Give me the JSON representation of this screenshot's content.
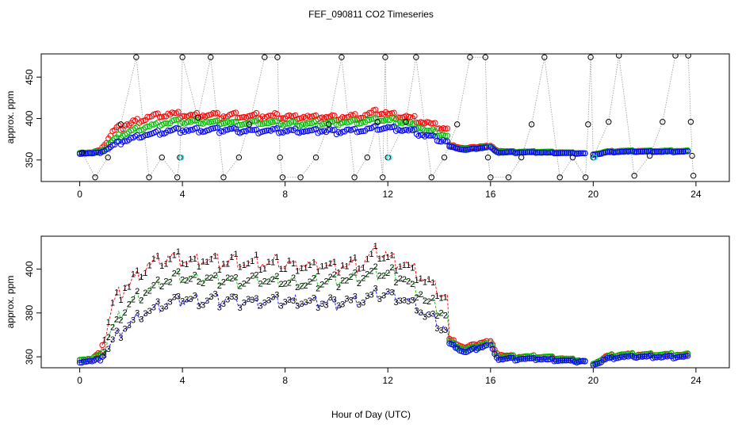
{
  "title": "FEF_090811  CO2 Timeseries",
  "xlabel": "Hour of Day (UTC)",
  "colors": {
    "series1": "#ff0000",
    "series2": "#00bb00",
    "series3": "#0000ff",
    "raw": "#000000",
    "flag": "#00e5ee",
    "connector": "#999999"
  },
  "chart_data": [
    {
      "type": "scatter",
      "ylabel": "approx. ppm",
      "xlim": [
        -1.5,
        25.3
      ],
      "ylim": [
        324,
        478
      ],
      "x_ticks": [
        "0",
        "4",
        "8",
        "12",
        "16",
        "20",
        "24"
      ],
      "x_tick_values": [
        0,
        4,
        8,
        12,
        16,
        20,
        24
      ],
      "y_ticks": [
        "350",
        "400",
        "450"
      ],
      "y_tick_values": [
        350,
        400,
        450
      ],
      "series": [
        {
          "values_key": "series1",
          "color": "#ff0000",
          "marker": "circle"
        },
        {
          "values_key": "series2",
          "color": "#00bb00",
          "marker": "circle"
        },
        {
          "values_key": "series3",
          "color": "#0000ff",
          "marker": "circle"
        }
      ],
      "raw_samples": [
        {
          "x": 0.1,
          "y": 359
        },
        {
          "x": 0.6,
          "y": 329
        },
        {
          "x": 1.1,
          "y": 353
        },
        {
          "x": 1.6,
          "y": 393
        },
        {
          "x": 2.2,
          "y": 474
        },
        {
          "x": 2.7,
          "y": 329
        },
        {
          "x": 3.2,
          "y": 353
        },
        {
          "x": 3.8,
          "y": 329
        },
        {
          "x": 3.9,
          "y": 353
        },
        {
          "x": 4.0,
          "y": 474
        },
        {
          "x": 4.6,
          "y": 401
        },
        {
          "x": 5.1,
          "y": 474
        },
        {
          "x": 5.6,
          "y": 329
        },
        {
          "x": 6.2,
          "y": 353
        },
        {
          "x": 6.6,
          "y": 393
        },
        {
          "x": 7.2,
          "y": 474
        },
        {
          "x": 7.7,
          "y": 474
        },
        {
          "x": 7.8,
          "y": 353
        },
        {
          "x": 7.9,
          "y": 329
        },
        {
          "x": 8.6,
          "y": 329
        },
        {
          "x": 9.2,
          "y": 353
        },
        {
          "x": 9.7,
          "y": 393
        },
        {
          "x": 10.2,
          "y": 474
        },
        {
          "x": 10.7,
          "y": 329
        },
        {
          "x": 11.2,
          "y": 353
        },
        {
          "x": 11.6,
          "y": 396
        },
        {
          "x": 11.8,
          "y": 329
        },
        {
          "x": 11.9,
          "y": 474
        },
        {
          "x": 12.0,
          "y": 353
        },
        {
          "x": 12.7,
          "y": 396
        },
        {
          "x": 13.1,
          "y": 474
        },
        {
          "x": 13.7,
          "y": 329
        },
        {
          "x": 14.2,
          "y": 353
        },
        {
          "x": 14.7,
          "y": 393
        },
        {
          "x": 15.2,
          "y": 474
        },
        {
          "x": 15.8,
          "y": 474
        },
        {
          "x": 15.9,
          "y": 353
        },
        {
          "x": 16.0,
          "y": 329
        },
        {
          "x": 16.7,
          "y": 329
        },
        {
          "x": 17.2,
          "y": 353
        },
        {
          "x": 17.6,
          "y": 393
        },
        {
          "x": 18.1,
          "y": 474
        },
        {
          "x": 18.7,
          "y": 329
        },
        {
          "x": 19.2,
          "y": 353
        },
        {
          "x": 19.7,
          "y": 329
        },
        {
          "x": 19.8,
          "y": 393
        },
        {
          "x": 19.9,
          "y": 474
        },
        {
          "x": 20.0,
          "y": 353
        },
        {
          "x": 20.6,
          "y": 396
        },
        {
          "x": 21.0,
          "y": 476
        },
        {
          "x": 21.6,
          "y": 331
        },
        {
          "x": 22.2,
          "y": 355
        },
        {
          "x": 22.7,
          "y": 396
        },
        {
          "x": 23.2,
          "y": 476
        },
        {
          "x": 23.7,
          "y": 476
        },
        {
          "x": 23.8,
          "y": 396
        },
        {
          "x": 23.85,
          "y": 355
        },
        {
          "x": 23.9,
          "y": 331
        }
      ],
      "flagged": [
        {
          "x": 3.95,
          "y": 353
        },
        {
          "x": 12.05,
          "y": 353
        },
        {
          "x": 20.05,
          "y": 353
        }
      ]
    },
    {
      "type": "scatter",
      "ylabel": "approx. ppm",
      "xlim": [
        -1.5,
        25.3
      ],
      "ylim": [
        355,
        415
      ],
      "x_ticks": [
        "0",
        "4",
        "8",
        "12",
        "16",
        "20",
        "24"
      ],
      "x_tick_values": [
        0,
        4,
        8,
        12,
        16,
        20,
        24
      ],
      "y_ticks": [
        "360",
        "380",
        "400"
      ],
      "y_tick_values": [
        360,
        380,
        400
      ],
      "series": [
        {
          "values_key": "series1",
          "color": "#ff0000",
          "marker": "1"
        },
        {
          "values_key": "series2",
          "color": "#00bb00",
          "marker": "2"
        },
        {
          "values_key": "series3",
          "color": "#0000ff",
          "marker": "3"
        }
      ]
    }
  ],
  "series_knots": {
    "series1": [
      [
        0,
        359
      ],
      [
        0.5,
        359
      ],
      [
        0.8,
        362
      ],
      [
        1.0,
        371
      ],
      [
        1.3,
        384
      ],
      [
        1.6,
        390
      ],
      [
        2.0,
        394
      ],
      [
        2.5,
        400
      ],
      [
        3.0,
        404
      ],
      [
        3.5,
        405
      ],
      [
        4.0,
        404
      ],
      [
        5.0,
        404
      ],
      [
        6.0,
        403
      ],
      [
        7.0,
        403
      ],
      [
        8.0,
        402
      ],
      [
        9.0,
        402
      ],
      [
        10.0,
        402
      ],
      [
        11.0,
        403
      ],
      [
        11.7,
        408
      ],
      [
        12.2,
        405
      ],
      [
        12.7,
        402
      ],
      [
        13.2,
        397
      ],
      [
        13.7,
        392
      ],
      [
        14.1,
        388
      ],
      [
        14.35,
        386
      ],
      [
        14.4,
        368
      ],
      [
        15.0,
        364
      ],
      [
        15.5,
        366
      ],
      [
        15.8,
        367
      ],
      [
        16.0,
        367
      ],
      [
        16.3,
        361
      ],
      [
        17.0,
        360
      ],
      [
        18.0,
        360
      ],
      [
        19.0,
        359
      ],
      [
        19.8,
        358
      ],
      [
        19.85,
        357
      ],
      [
        20.2,
        358
      ],
      [
        20.5,
        360
      ],
      [
        21.0,
        361
      ],
      [
        22.0,
        361
      ],
      [
        23.0,
        361
      ],
      [
        23.7,
        361
      ]
    ],
    "series2": [
      [
        0,
        359
      ],
      [
        0.5,
        359
      ],
      [
        0.8,
        361
      ],
      [
        1.0,
        365
      ],
      [
        1.3,
        373
      ],
      [
        1.6,
        380
      ],
      [
        2.0,
        385
      ],
      [
        2.5,
        390
      ],
      [
        3.0,
        393
      ],
      [
        3.5,
        395
      ],
      [
        4.0,
        396
      ],
      [
        5.0,
        396
      ],
      [
        6.0,
        395
      ],
      [
        7.0,
        395
      ],
      [
        8.0,
        394
      ],
      [
        9.0,
        394
      ],
      [
        10.0,
        395
      ],
      [
        11.0,
        396
      ],
      [
        11.7,
        399
      ],
      [
        12.2,
        398
      ],
      [
        12.7,
        395
      ],
      [
        13.2,
        390
      ],
      [
        13.7,
        384
      ],
      [
        14.1,
        381
      ],
      [
        14.35,
        379
      ],
      [
        14.4,
        367
      ],
      [
        15.0,
        363
      ],
      [
        15.5,
        365
      ],
      [
        15.8,
        366
      ],
      [
        16.0,
        366
      ],
      [
        16.3,
        360
      ],
      [
        17.0,
        360
      ],
      [
        18.0,
        360
      ],
      [
        19.0,
        359
      ],
      [
        19.8,
        358
      ],
      [
        19.85,
        357
      ],
      [
        20.2,
        358
      ],
      [
        20.5,
        360
      ],
      [
        21.0,
        361
      ],
      [
        22.0,
        361
      ],
      [
        23.0,
        361
      ],
      [
        23.7,
        361
      ]
    ],
    "series3": [
      [
        0,
        358
      ],
      [
        0.5,
        358
      ],
      [
        0.8,
        359
      ],
      [
        1.0,
        362
      ],
      [
        1.3,
        367
      ],
      [
        1.6,
        372
      ],
      [
        2.0,
        376
      ],
      [
        2.5,
        380
      ],
      [
        3.0,
        383
      ],
      [
        3.5,
        385
      ],
      [
        4.0,
        386
      ],
      [
        5.0,
        386
      ],
      [
        6.0,
        386
      ],
      [
        7.0,
        385
      ],
      [
        8.0,
        385
      ],
      [
        9.0,
        385
      ],
      [
        10.0,
        385
      ],
      [
        11.0,
        386
      ],
      [
        11.7,
        389
      ],
      [
        12.2,
        389
      ],
      [
        12.7,
        386
      ],
      [
        13.2,
        382
      ],
      [
        13.7,
        377
      ],
      [
        14.1,
        374
      ],
      [
        14.35,
        372
      ],
      [
        14.4,
        366
      ],
      [
        15.0,
        362
      ],
      [
        15.5,
        364
      ],
      [
        15.8,
        365
      ],
      [
        16.0,
        365
      ],
      [
        16.3,
        359
      ],
      [
        17.0,
        359
      ],
      [
        18.0,
        359
      ],
      [
        19.0,
        358
      ],
      [
        19.8,
        358
      ],
      [
        19.85,
        357
      ],
      [
        20.2,
        357
      ],
      [
        20.5,
        359
      ],
      [
        21.0,
        360
      ],
      [
        22.0,
        360
      ],
      [
        23.0,
        360
      ],
      [
        23.7,
        360
      ]
    ]
  }
}
